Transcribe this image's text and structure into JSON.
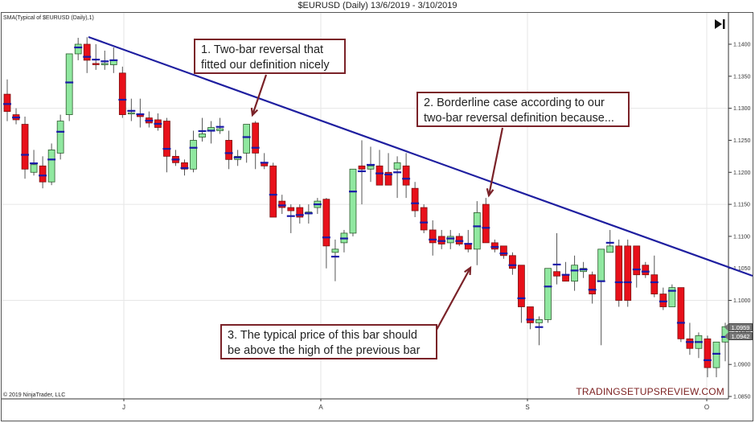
{
  "title": "$EURUSD (Daily)  13/6/2019 - 3/10/2019",
  "indicator_label": "SMA(Typical of $EURUSD (Daily),1)",
  "copyright": "© 2019 NinjaTrader, LLC",
  "watermark": "TRADINGSETUPSREVIEW.COM",
  "scroll_button": {
    "icon": "skip-to-end-icon"
  },
  "colors": {
    "up_candle": "#90e8a0",
    "down_candle": "#e8101a",
    "candle_outline": "#333333",
    "typical_marker": "#1a1aa8",
    "trendline": "#1f1fa0",
    "arrow": "#7a2228",
    "callout_border": "#7a2228",
    "grid": "#e6e6e6",
    "watermark": "#7b1f1f"
  },
  "callouts": [
    {
      "id": 1,
      "text_line1": "1. Two-bar reversal that",
      "text_line2": "fitted our definition nicely"
    },
    {
      "id": 2,
      "text_line1": "2. Borderline case according to our",
      "text_line2": "two-bar reversal definition because..."
    },
    {
      "id": 3,
      "text_line1": "3. The typical price of this bar should",
      "text_line2": "be above the high of the previous bar"
    }
  ],
  "price_tags": [
    {
      "label": "1.0959"
    },
    {
      "label": "1.0942"
    }
  ],
  "chart_data": {
    "type": "candlestick",
    "title": "$EURUSD (Daily)  13/6/2019 - 3/10/2019",
    "indicator": "SMA(Typical of $EURUSD (Daily),1)",
    "y_axis": {
      "ticks": [
        "1.1400",
        "1.1350",
        "1.1300",
        "1.1250",
        "1.1200",
        "1.1150",
        "1.1100",
        "1.1050",
        "1.1000",
        "1.0950",
        "1.0900",
        "1.0850"
      ],
      "ylim": [
        1.085,
        1.142
      ],
      "position": "right"
    },
    "x_axis": {
      "ticks": [
        "J",
        "A",
        "S",
        "O"
      ],
      "tick_meaning": [
        "July",
        "August",
        "September",
        "October"
      ]
    },
    "grid": true,
    "trendline": {
      "from_price": 1.1411,
      "to_price": 1.104,
      "description": "Descending resistance trendline from July high"
    },
    "last_prices": [
      1.0959,
      1.0942
    ],
    "candles_ohlc": [
      [
        1.1322,
        1.1345,
        1.128,
        1.1295
      ],
      [
        1.129,
        1.13,
        1.1275,
        1.1282
      ],
      [
        1.1275,
        1.1287,
        1.119,
        1.1205
      ],
      [
        1.12,
        1.1235,
        1.1195,
        1.1212
      ],
      [
        1.121,
        1.1225,
        1.1175,
        1.1185
      ],
      [
        1.1185,
        1.1245,
        1.118,
        1.1235
      ],
      [
        1.123,
        1.129,
        1.122,
        1.128
      ],
      [
        1.129,
        1.1356,
        1.128,
        1.1385
      ],
      [
        1.1385,
        1.141,
        1.1375,
        1.14
      ],
      [
        1.14,
        1.1411,
        1.1355,
        1.1375
      ],
      [
        1.137,
        1.14,
        1.136,
        1.1368
      ],
      [
        1.1368,
        1.139,
        1.136,
        1.137
      ],
      [
        1.1368,
        1.1395,
        1.1355,
        1.1375
      ],
      [
        1.1355,
        1.1365,
        1.1285,
        1.129
      ],
      [
        1.1292,
        1.1315,
        1.128,
        1.1293
      ],
      [
        1.129,
        1.1315,
        1.127,
        1.1287
      ],
      [
        1.1285,
        1.1295,
        1.127,
        1.1277
      ],
      [
        1.1282,
        1.1292,
        1.1265,
        1.127
      ],
      [
        1.128,
        1.1285,
        1.12,
        1.1225
      ],
      [
        1.1225,
        1.1235,
        1.121,
        1.1215
      ],
      [
        1.1215,
        1.122,
        1.1195,
        1.1205
      ],
      [
        1.1205,
        1.1265,
        1.12,
        1.125
      ],
      [
        1.1255,
        1.1285,
        1.1248,
        1.126
      ],
      [
        1.1265,
        1.128,
        1.1245,
        1.127
      ],
      [
        1.1265,
        1.1285,
        1.126,
        1.1268
      ],
      [
        1.125,
        1.1265,
        1.1205,
        1.122
      ],
      [
        1.122,
        1.1235,
        1.121,
        1.1225
      ],
      [
        1.123,
        1.1275,
        1.1215,
        1.1275
      ],
      [
        1.1277,
        1.128,
        1.1205,
        1.123
      ],
      [
        1.1215,
        1.123,
        1.1205,
        1.121
      ],
      [
        1.121,
        1.1215,
        1.115,
        1.113
      ],
      [
        1.1155,
        1.1165,
        1.1135,
        1.1145
      ],
      [
        1.1145,
        1.115,
        1.1105,
        1.114
      ],
      [
        1.1145,
        1.115,
        1.112,
        1.113
      ],
      [
        1.1135,
        1.115,
        1.112,
        1.1138
      ],
      [
        1.1145,
        1.116,
        1.1135,
        1.1155
      ],
      [
        1.1158,
        1.116,
        1.105,
        1.1085
      ],
      [
        1.1075,
        1.1095,
        1.103,
        1.108
      ],
      [
        1.109,
        1.111,
        1.1075,
        1.1105
      ],
      [
        1.1105,
        1.1205,
        1.11,
        1.1205
      ],
      [
        1.121,
        1.125,
        1.115,
        1.1205
      ],
      [
        1.1205,
        1.124,
        1.1185,
        1.121
      ],
      [
        1.121,
        1.1235,
        1.118,
        1.118
      ],
      [
        1.12,
        1.123,
        1.118,
        1.118
      ],
      [
        1.1205,
        1.1225,
        1.116,
        1.1215
      ],
      [
        1.121,
        1.123,
        1.116,
        1.118
      ],
      [
        1.1175,
        1.1185,
        1.113,
        1.114
      ],
      [
        1.1145,
        1.115,
        1.1105,
        1.111
      ],
      [
        1.111,
        1.1125,
        1.107,
        1.109
      ],
      [
        1.11,
        1.111,
        1.108,
        1.1088
      ],
      [
        1.109,
        1.111,
        1.108,
        1.11
      ],
      [
        1.11,
        1.1105,
        1.1085,
        1.1088
      ],
      [
        1.1088,
        1.111,
        1.1075,
        1.108
      ],
      [
        1.108,
        1.1155,
        1.1055,
        1.1137
      ],
      [
        1.115,
        1.116,
        1.109,
        1.109
      ],
      [
        1.109,
        1.1095,
        1.1075,
        1.108
      ],
      [
        1.1085,
        1.1085,
        1.1065,
        1.107
      ],
      [
        1.107,
        1.1075,
        1.104,
        1.105
      ],
      [
        1.1055,
        1.1055,
        1.0965,
        1.099
      ],
      [
        1.099,
        1.099,
        1.0955,
        1.0965
      ],
      [
        1.0965,
        1.0975,
        1.093,
        1.097
      ],
      [
        1.097,
        1.105,
        1.0965,
        1.105
      ],
      [
        1.1045,
        1.1105,
        1.1025,
        1.1038
      ],
      [
        1.104,
        1.106,
        1.103,
        1.103
      ],
      [
        1.103,
        1.107,
        1.1015,
        1.1055
      ],
      [
        1.1045,
        1.106,
        1.1035,
        1.105
      ],
      [
        1.104,
        1.1045,
        1.0995,
        1.101
      ],
      [
        1.103,
        1.108,
        1.093,
        1.108
      ],
      [
        1.1075,
        1.111,
        1.1075,
        1.1085
      ],
      [
        1.1085,
        1.1095,
        1.099,
        1.1
      ],
      [
        1.1085,
        1.1095,
        1.099,
        1.1
      ],
      [
        1.1085,
        1.1085,
        1.102,
        1.104
      ],
      [
        1.1055,
        1.106,
        1.1035,
        1.104
      ],
      [
        1.104,
        1.107,
        1.1005,
        1.101
      ],
      [
        1.101,
        1.102,
        1.0985,
        1.099
      ],
      [
        1.099,
        1.1025,
        1.1,
        1.102
      ],
      [
        1.102,
        1.102,
        1.0935,
        1.094
      ],
      [
        1.094,
        1.0965,
        1.0915,
        1.0925
      ],
      [
        1.0925,
        1.095,
        1.091,
        1.0945
      ],
      [
        1.094,
        1.0945,
        1.088,
        1.0895
      ],
      [
        1.0895,
        1.0935,
        1.088,
        1.0935
      ],
      [
        1.0935,
        1.0965,
        1.0905,
        1.0959
      ]
    ]
  }
}
